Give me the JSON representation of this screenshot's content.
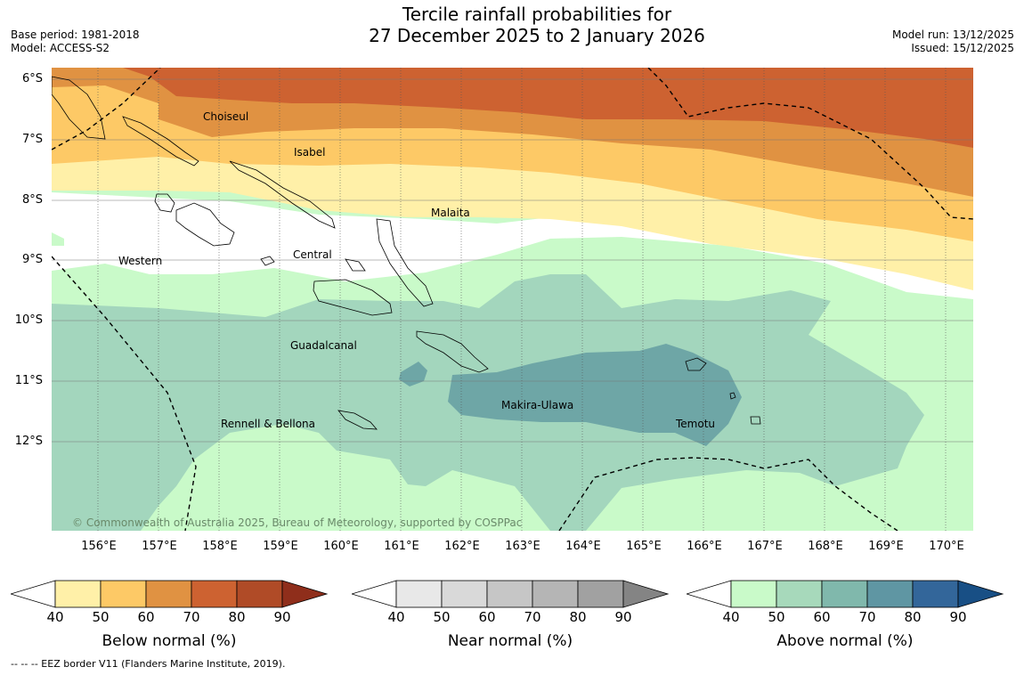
{
  "title_line1": "Tercile rainfall probabilities for",
  "title_line2": "27 December 2025 to 2 January 2026",
  "base_period": "Base period: 1981-2018",
  "model": "Model: ACCESS-S2",
  "model_run": "Model run: 13/12/2025",
  "issued": "Issued: 15/12/2025",
  "copyright": "© Commonwealth of Australia 2025, Bureau of Meteorology, supported by COSPPac",
  "lat_labels": [
    "6°S",
    "7°S",
    "8°S",
    "9°S",
    "10°S",
    "11°S",
    "12°S"
  ],
  "lon_labels": [
    "156°E",
    "157°E",
    "158°E",
    "159°E",
    "160°E",
    "161°E",
    "162°E",
    "163°E",
    "164°E",
    "165°E",
    "166°E",
    "167°E",
    "168°E",
    "169°E",
    "170°E"
  ],
  "provinces": [
    "Choiseul",
    "Isabel",
    "Malaita",
    "Western",
    "Central",
    "Guadalcanal",
    "Makira-Ulawa",
    "Temotu",
    "Rennell & Bellona"
  ],
  "colorbars": [
    {
      "title": "Below normal (%)",
      "ticks": [
        "40",
        "50",
        "60",
        "70",
        "80",
        "90"
      ],
      "colors": [
        "#fff0a8",
        "#fdc966",
        "#e09242",
        "#cd6231",
        "#b04b27",
        "#8f2e1b"
      ]
    },
    {
      "title": "Near normal (%)",
      "ticks": [
        "40",
        "50",
        "60",
        "70",
        "80",
        "90"
      ],
      "colors": [
        "#e8e8e8",
        "#d9d9d9",
        "#c6c6c6",
        "#b5b5b5",
        "#a1a1a1",
        "#848484"
      ]
    },
    {
      "title": "Above normal (%)",
      "ticks": [
        "40",
        "50",
        "60",
        "70",
        "80",
        "90"
      ],
      "colors": [
        "#c9fac9",
        "#a7d9bb",
        "#80b8ac",
        "#5f96a3",
        "#33669a",
        "#184f85"
      ]
    }
  ],
  "footnote": "-- -- -- EEZ border V11 (Flanders Marine Institute, 2019)."
}
